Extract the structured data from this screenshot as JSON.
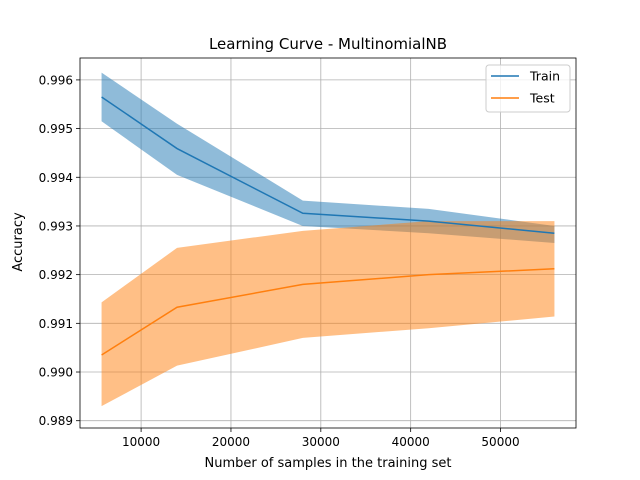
{
  "chart_data": {
    "type": "line",
    "title": "Learning Curve - MultinomialNB",
    "xlabel": "Number of samples in the training set",
    "ylabel": "Accuracy",
    "xlim": [
      3200,
      58400
    ],
    "ylim": [
      0.98885,
      0.99645
    ],
    "xticks": [
      10000,
      20000,
      30000,
      40000,
      50000
    ],
    "xtick_labels": [
      "10000",
      "20000",
      "30000",
      "40000",
      "50000"
    ],
    "yticks": [
      0.989,
      0.99,
      0.991,
      0.992,
      0.993,
      0.994,
      0.995,
      0.996
    ],
    "ytick_labels": [
      "0.989",
      "0.990",
      "0.991",
      "0.992",
      "0.993",
      "0.994",
      "0.995",
      "0.996"
    ],
    "grid": true,
    "legend_position": "top-right",
    "x": [
      5600,
      14000,
      28000,
      42000,
      56000
    ],
    "series": [
      {
        "name": "Train",
        "color": "#1f77b4",
        "band_color": "#1f77b4",
        "values": [
          0.99565,
          0.99459,
          0.99326,
          0.9931,
          0.99285
        ],
        "upper": [
          0.99615,
          0.9951,
          0.99352,
          0.99335,
          0.993
        ],
        "lower": [
          0.99515,
          0.99405,
          0.993,
          0.99285,
          0.99265
        ]
      },
      {
        "name": "Test",
        "color": "#ff7f0e",
        "band_color": "#ff7f0e",
        "values": [
          0.99035,
          0.99133,
          0.9918,
          0.992,
          0.99212
        ],
        "upper": [
          0.99143,
          0.99255,
          0.9929,
          0.9931,
          0.9931
        ],
        "lower": [
          0.9893,
          0.99013,
          0.9907,
          0.9909,
          0.99114
        ]
      }
    ]
  }
}
